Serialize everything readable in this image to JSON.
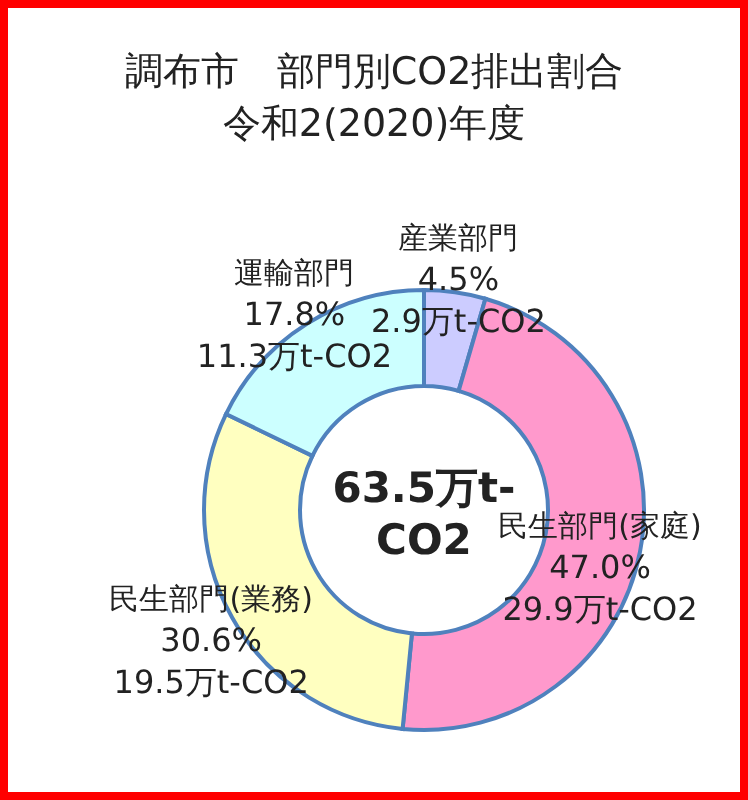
{
  "chart_data": {
    "type": "donut",
    "title": "調布市　部門別CO2排出割合",
    "subtitle": "令和2(2020)年度",
    "categories": [
      "産業部門",
      "民生部門(家庭)",
      "民生部門(業務)",
      "運輸部門"
    ],
    "values": [
      4.5,
      47.0,
      30.6,
      17.8
    ],
    "value_labels": [
      "4.5%",
      "47.0%",
      "30.6%",
      "17.8%"
    ],
    "colors": [
      "#ccccff",
      "#ff99cc",
      "#ffffc0",
      "#ccffff"
    ],
    "annotations": [
      {
        "text": "2.9万t-CO2",
        "x": "産業部門"
      },
      {
        "text": "29.9万t-CO2",
        "x": "民生部門(家庭)"
      },
      {
        "text": "19.5万t-CO2",
        "x": "民生部門(業務)"
      },
      {
        "text": "11.3万t-CO2",
        "x": "運輸部門"
      },
      "63.5万t-CO2"
    ]
  }
}
